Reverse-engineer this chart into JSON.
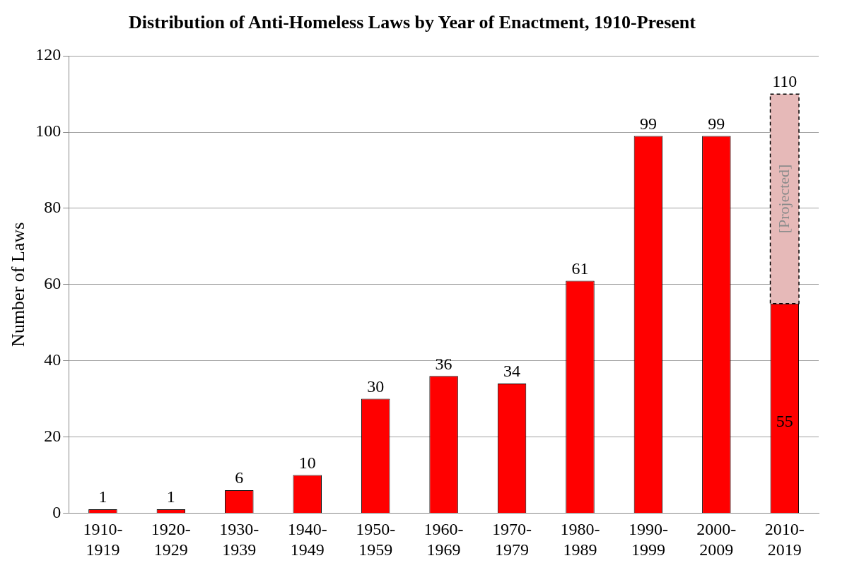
{
  "chart_data": {
    "type": "bar",
    "title": "Distribution of Anti-Homeless Laws by Year of Enactment, 1910-Present",
    "ylabel": "Number of Laws",
    "categories": [
      "1910-1919",
      "1920-1929",
      "1930-1939",
      "1940-1949",
      "1950-1959",
      "1960-1969",
      "1970-1979",
      "1980-1989",
      "1990-1999",
      "2000-2009",
      "2010-2019"
    ],
    "stacked": true,
    "series": [
      {
        "color": "#ff0000",
        "values": [
          1,
          1,
          6,
          10,
          30,
          36,
          34,
          61,
          99,
          99,
          55
        ],
        "value_labels": [
          null,
          null,
          null,
          null,
          null,
          null,
          null,
          null,
          null,
          null,
          "55"
        ]
      },
      {
        "name": "[Projected]",
        "color": "#e6b9b8",
        "line_style": "dashed",
        "values": [
          null,
          null,
          null,
          null,
          null,
          null,
          null,
          null,
          null,
          null,
          55
        ]
      }
    ],
    "totals": [
      "1",
      "1",
      "6",
      "10",
      "30",
      "36",
      "34",
      "61",
      "99",
      "99",
      "110"
    ],
    "ylim": [
      0,
      120
    ],
    "yticks": [
      0,
      20,
      40,
      60,
      80,
      100,
      120
    ],
    "grid": "y",
    "legend": false
  }
}
